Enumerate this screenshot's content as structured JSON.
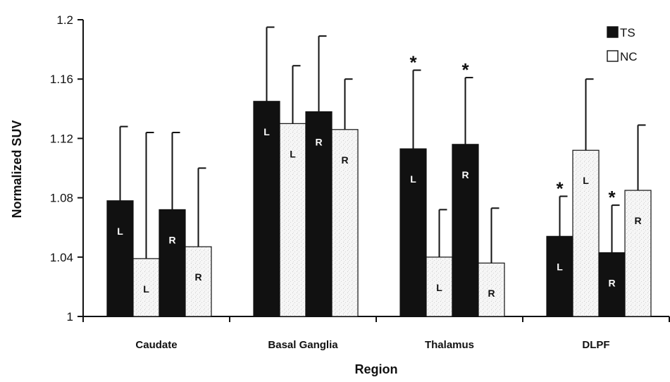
{
  "chart_data": {
    "type": "bar",
    "xlabel": "Region",
    "ylabel": "Normalized SUV",
    "ylim": [
      1,
      1.2
    ],
    "yticks": [
      "1",
      "1.04",
      "1.08",
      "1.12",
      "1.16",
      "1.2"
    ],
    "categories": [
      "Caudate",
      "Basal Ganglia",
      "Thalamus",
      "DLPF"
    ],
    "legend": {
      "position": "top-right",
      "items": [
        {
          "name": "TS",
          "color": "#111111"
        },
        {
          "name": "NC",
          "color": "#ffffff"
        }
      ]
    },
    "bars": [
      {
        "category": "Caudate",
        "group": "TS",
        "side": "L",
        "value": 1.078,
        "error": 0.05,
        "significant": false
      },
      {
        "category": "Caudate",
        "group": "NC",
        "side": "L",
        "value": 1.039,
        "error": 0.085,
        "significant": false
      },
      {
        "category": "Caudate",
        "group": "TS",
        "side": "R",
        "value": 1.072,
        "error": 0.052,
        "significant": false
      },
      {
        "category": "Caudate",
        "group": "NC",
        "side": "R",
        "value": 1.047,
        "error": 0.053,
        "significant": false
      },
      {
        "category": "Basal Ganglia",
        "group": "TS",
        "side": "L",
        "value": 1.145,
        "error": 0.05,
        "significant": false
      },
      {
        "category": "Basal Ganglia",
        "group": "NC",
        "side": "L",
        "value": 1.13,
        "error": 0.039,
        "significant": false
      },
      {
        "category": "Basal Ganglia",
        "group": "TS",
        "side": "R",
        "value": 1.138,
        "error": 0.051,
        "significant": false
      },
      {
        "category": "Basal Ganglia",
        "group": "NC",
        "side": "R",
        "value": 1.126,
        "error": 0.034,
        "significant": false
      },
      {
        "category": "Thalamus",
        "group": "TS",
        "side": "L",
        "value": 1.113,
        "error": 0.053,
        "significant": true
      },
      {
        "category": "Thalamus",
        "group": "NC",
        "side": "L",
        "value": 1.04,
        "error": 0.032,
        "significant": false
      },
      {
        "category": "Thalamus",
        "group": "TS",
        "side": "R",
        "value": 1.116,
        "error": 0.045,
        "significant": true
      },
      {
        "category": "Thalamus",
        "group": "NC",
        "side": "R",
        "value": 1.036,
        "error": 0.037,
        "significant": false
      },
      {
        "category": "DLPF",
        "group": "TS",
        "side": "L",
        "value": 1.054,
        "error": 0.027,
        "significant": true
      },
      {
        "category": "DLPF",
        "group": "NC",
        "side": "L",
        "value": 1.112,
        "error": 0.048,
        "significant": false
      },
      {
        "category": "DLPF",
        "group": "TS",
        "side": "R",
        "value": 1.043,
        "error": 0.032,
        "significant": true
      },
      {
        "category": "DLPF",
        "group": "NC",
        "side": "R",
        "value": 1.085,
        "error": 0.044,
        "significant": false
      }
    ],
    "significance_marker": "*",
    "colors": {
      "TS": "#111111",
      "NC_fill": "#f4f4f4",
      "axis": "#111111",
      "error_bar": "#111111"
    }
  }
}
